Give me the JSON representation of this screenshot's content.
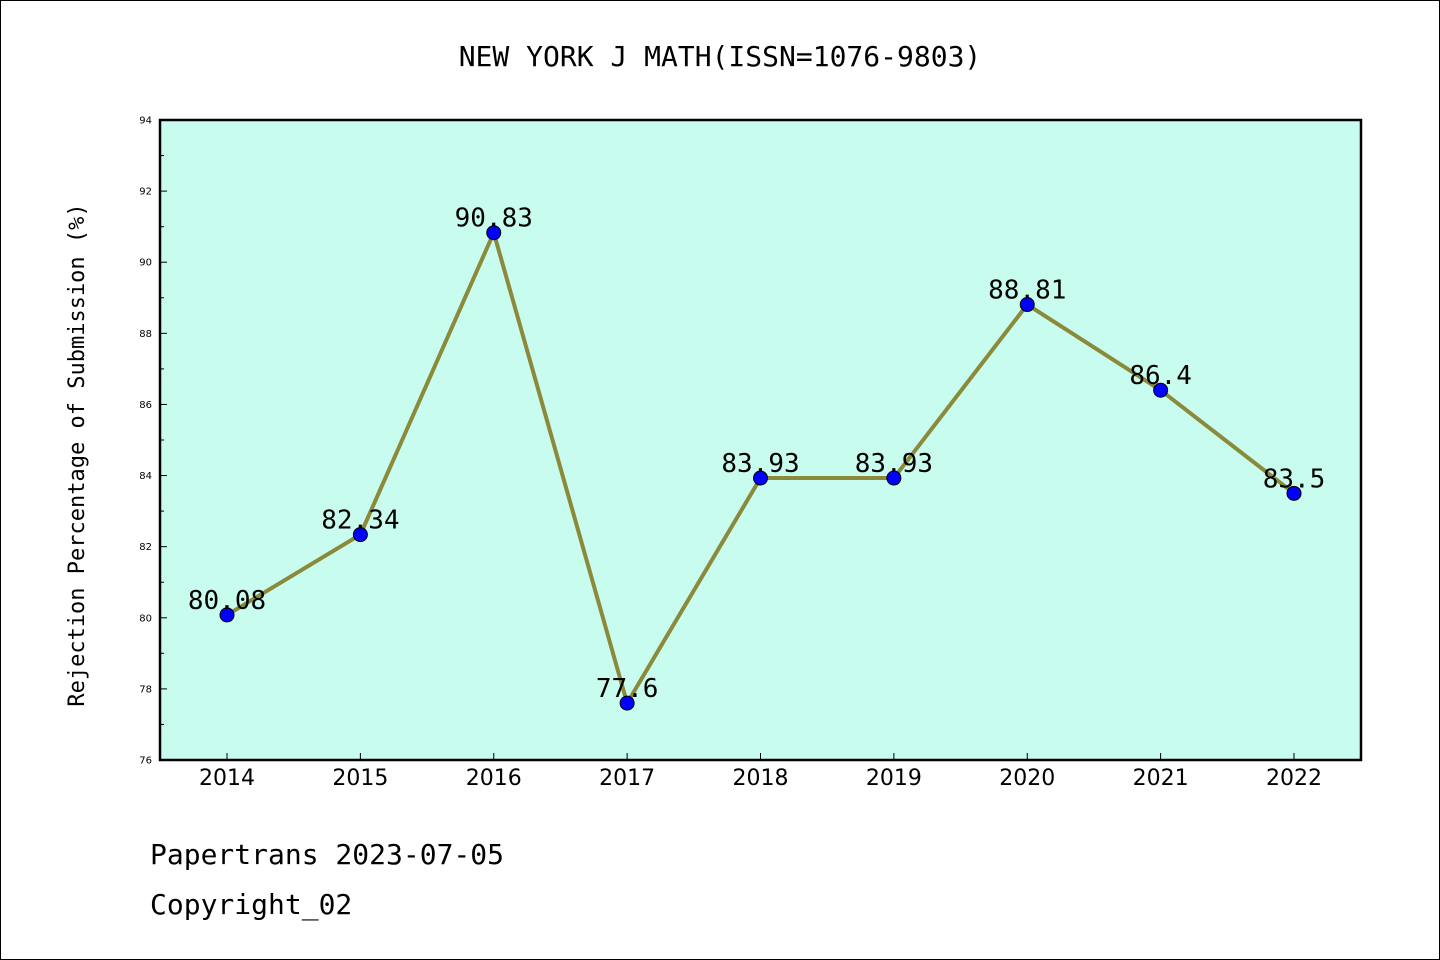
{
  "chart_data": {
    "type": "line",
    "title": "NEW YORK J MATH(ISSN=1076-9803)",
    "xlabel": "",
    "ylabel": "Rejection Percentage of Submission (%)",
    "categories": [
      "2014",
      "2015",
      "2016",
      "2017",
      "2018",
      "2019",
      "2020",
      "2021",
      "2022"
    ],
    "series": [
      {
        "values": [
          80.08,
          82.34,
          90.83,
          77.6,
          83.93,
          83.93,
          88.81,
          86.4,
          83.5
        ],
        "labels": [
          "80.08",
          "82.34",
          "90.83",
          "77.6",
          "83.93",
          "83.93",
          "88.81",
          "86.4",
          "83.5"
        ]
      }
    ],
    "ylim": [
      76,
      94
    ],
    "yticks": [
      "76",
      "78",
      "80",
      "82",
      "84",
      "86",
      "88",
      "90",
      "92",
      "94"
    ],
    "grid": false,
    "legend": "none",
    "colors": {
      "plot_background": "#c8fcee",
      "line": "#8b8a3a",
      "marker": "#0000ff"
    }
  },
  "footer": {
    "line1": "Papertrans 2023-07-05",
    "line2": "Copyright_02"
  }
}
